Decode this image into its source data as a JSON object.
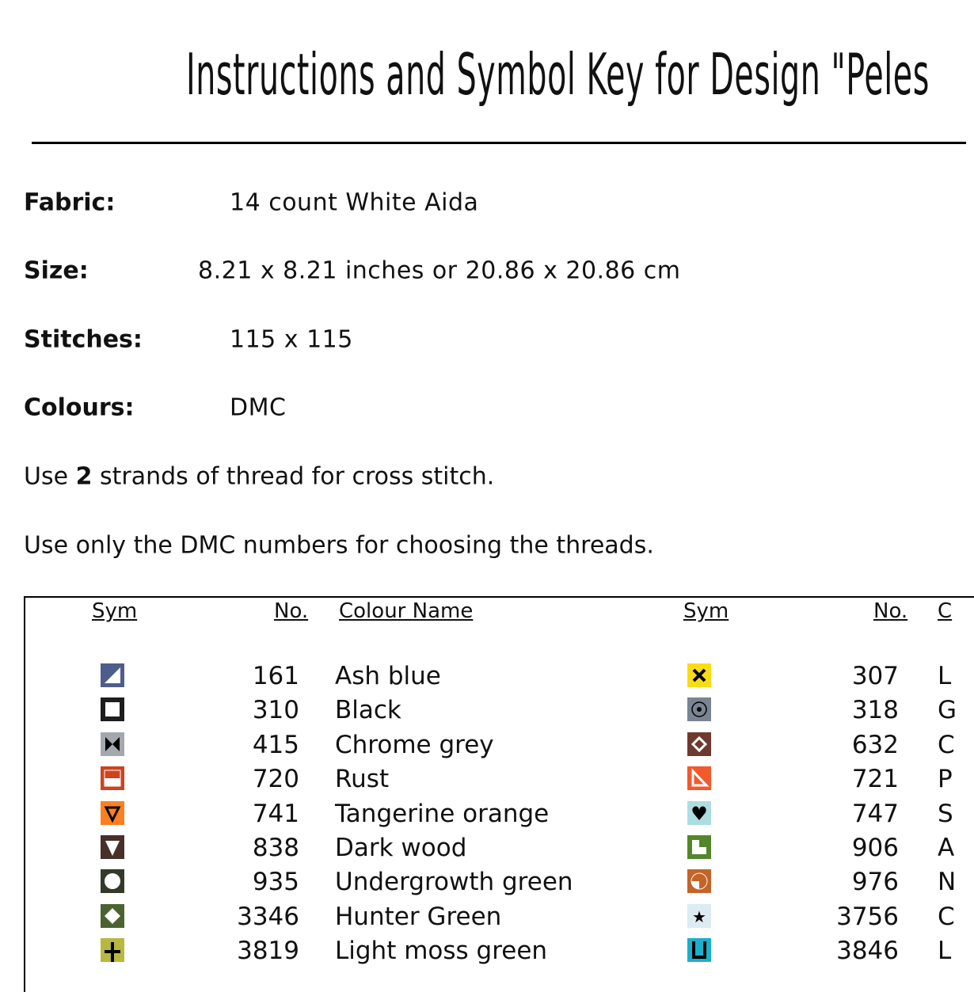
{
  "title": "Instructions and Symbol Key for Design \"Peles",
  "fields": [
    {
      "label": "Fabric:",
      "value": "14 count White Aida"
    },
    {
      "label": "Size:",
      "value": "8.21 x 8.21 inches or 20.86 x 20.86 cm"
    },
    {
      "label": "Stitches:",
      "value": "115 x 115"
    },
    {
      "label": "Colours:",
      "value": "DMC"
    }
  ],
  "instructions": {
    "strands_pre": "Use ",
    "strands_num": "2",
    "strands_post": " strands of thread for cross stitch.",
    "dmc_note": "Use only the DMC numbers for choosing the threads."
  },
  "table": {
    "headers": {
      "sym": "Sym",
      "no": "No.",
      "name": "Colour Name",
      "sym2": "Sym",
      "no2": "No.",
      "name2": "C"
    },
    "left": [
      {
        "symbol": "triangle-half",
        "bg": "#4f5d8d",
        "fg": "#ffffff",
        "no": "161",
        "name": "Ash blue"
      },
      {
        "symbol": "hollow-square",
        "bg": "#1e1e1e",
        "fg": "#ffffff",
        "no": "310",
        "name": "Black"
      },
      {
        "symbol": "bowtie",
        "bg": "#a3a8ae",
        "fg": "#000000",
        "no": "415",
        "name": "Chrome grey"
      },
      {
        "symbol": "half-bar",
        "bg": "#cc4420",
        "fg": "#ffffff",
        "no": "720",
        "name": "Rust"
      },
      {
        "symbol": "triangle-outline-down",
        "bg": "#fb8022",
        "fg": "#000000",
        "no": "741",
        "name": "Tangerine orange"
      },
      {
        "symbol": "triangle-down",
        "bg": "#47302a",
        "fg": "#ffffff",
        "no": "838",
        "name": "Dark wood"
      },
      {
        "symbol": "circle",
        "bg": "#333a2a",
        "fg": "#ffffff",
        "no": "935",
        "name": "Undergrowth green"
      },
      {
        "symbol": "diamond",
        "bg": "#4a6330",
        "fg": "#ffffff",
        "no": "3346",
        "name": "Hunter Green"
      },
      {
        "symbol": "plus",
        "bg": "#b8b840",
        "fg": "#000000",
        "no": "3819",
        "name": "Light moss green"
      }
    ],
    "right": [
      {
        "symbol": "x",
        "bg": "#f9dc18",
        "fg": "#000000",
        "no": "307",
        "name": "L"
      },
      {
        "symbol": "dot-circle",
        "bg": "#7a8492",
        "fg": "#000000",
        "no": "318",
        "name": "G"
      },
      {
        "symbol": "diamond-outline",
        "bg": "#6e3a30",
        "fg": "#ffffff",
        "no": "632",
        "name": "C"
      },
      {
        "symbol": "set-square",
        "bg": "#f25a2c",
        "fg": "#ffffff",
        "no": "721",
        "name": "P"
      },
      {
        "symbol": "heart",
        "bg": "#acdde0",
        "fg": "#000000",
        "no": "747",
        "name": "S"
      },
      {
        "symbol": "l-shape",
        "bg": "#54862a",
        "fg": "#ffffff",
        "no": "906",
        "name": "A"
      },
      {
        "symbol": "circle-quarter",
        "bg": "#c46428",
        "fg": "#ffffff",
        "no": "976",
        "name": "N"
      },
      {
        "symbol": "star",
        "bg": "#dcecf2",
        "fg": "#000000",
        "no": "3756",
        "name": "C"
      },
      {
        "symbol": "u-shape",
        "bg": "#1ab0cc",
        "fg": "#000000",
        "no": "3846",
        "name": "L"
      }
    ]
  }
}
